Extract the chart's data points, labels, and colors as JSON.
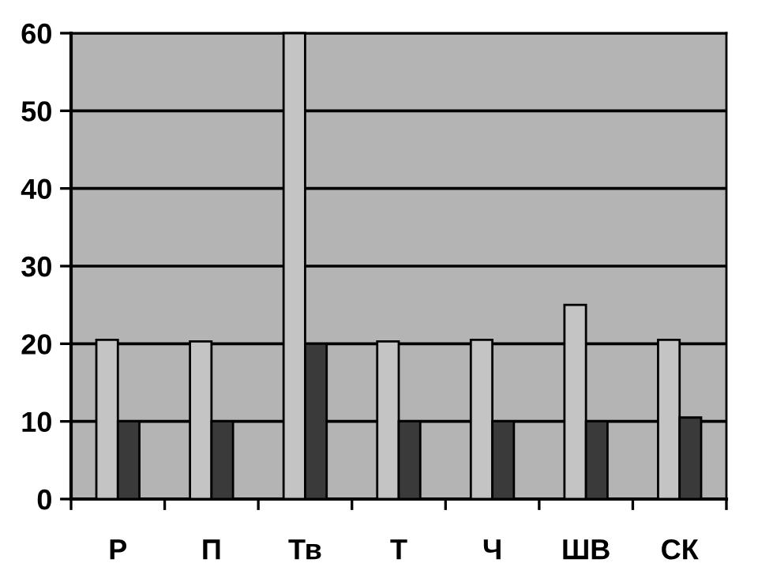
{
  "chart_data": {
    "type": "bar",
    "categories": [
      "Р",
      "П",
      "Тв",
      "Т",
      "Ч",
      "ШВ",
      "СК"
    ],
    "series": [
      {
        "color": "#c4c4c4",
        "values": [
          20.5,
          20.3,
          60,
          20.3,
          20.5,
          25,
          20.5
        ]
      },
      {
        "color": "#3a3a3a",
        "values": [
          10,
          10,
          20,
          10,
          10,
          10,
          10.5
        ]
      }
    ],
    "ylim": [
      0,
      60
    ],
    "yticks": [
      0,
      10,
      20,
      30,
      40,
      50,
      60
    ],
    "grid": "y",
    "legend": false
  }
}
